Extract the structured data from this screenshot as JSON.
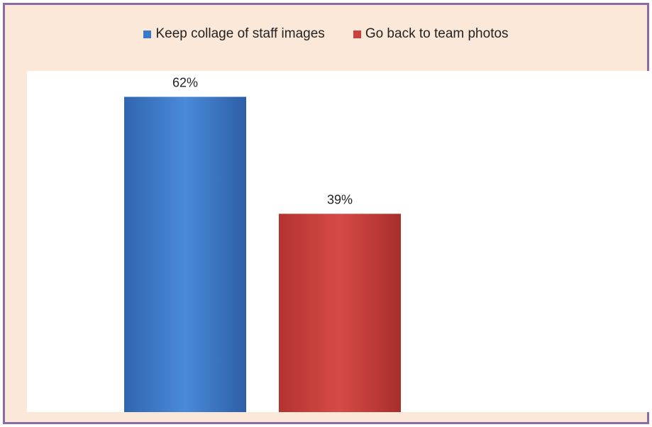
{
  "chart_data": {
    "type": "bar",
    "title": "",
    "xlabel": "",
    "ylabel": "",
    "categories": [
      ""
    ],
    "ylim": [
      0,
      65
    ],
    "grid": false,
    "legend_position": "top",
    "series": [
      {
        "name": "Keep collage of staff images",
        "values": [
          62
        ],
        "label": "62%",
        "color": "#3a78c9"
      },
      {
        "name": "Go back to team photos",
        "values": [
          39
        ],
        "label": "39%",
        "color": "#c9403d"
      }
    ]
  }
}
